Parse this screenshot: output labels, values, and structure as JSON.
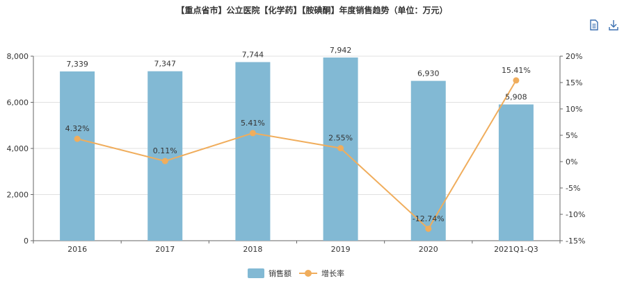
{
  "title": "【重点省市】公立医院【化学药】【胺碘酮】年度销售趋势（单位：万元）",
  "toolbar": {
    "data_view_icon": "document-icon",
    "download_icon": "download-icon"
  },
  "colors": {
    "bar": "#82b9d4",
    "line": "#f0ad5c",
    "grid": "#e0e0e0",
    "axis": "#666666"
  },
  "chart_data": {
    "type": "bar",
    "categories": [
      "2016",
      "2017",
      "2018",
      "2019",
      "2020",
      "2021Q1-Q3"
    ],
    "series": [
      {
        "name": "销售额",
        "type": "bar",
        "axis": "left",
        "values": [
          7339,
          7347,
          7744,
          7942,
          6930,
          5908
        ],
        "labels": [
          "7,339",
          "7,347",
          "7,744",
          "7,942",
          "6,930",
          "5,908"
        ]
      },
      {
        "name": "增长率",
        "type": "line",
        "axis": "right",
        "values": [
          4.32,
          0.11,
          5.41,
          2.55,
          -12.74,
          15.41
        ],
        "labels": [
          "4.32%",
          "0.11%",
          "5.41%",
          "2.55%",
          "-12.74%",
          "15.41%"
        ]
      }
    ],
    "y_left": {
      "min": 0,
      "max": 8000,
      "ticks": [
        0,
        2000,
        4000,
        6000,
        8000
      ],
      "tick_labels": [
        "0",
        "2,000",
        "4,000",
        "6,000",
        "8,000"
      ]
    },
    "y_right": {
      "min": -15,
      "max": 20,
      "ticks": [
        -15,
        -10,
        -5,
        0,
        5,
        10,
        15,
        20
      ],
      "tick_labels": [
        "-15%",
        "-10%",
        "-5%",
        "0%",
        "5%",
        "10%",
        "15%",
        "20%"
      ]
    },
    "grid": true,
    "legend_position": "bottom-center"
  }
}
